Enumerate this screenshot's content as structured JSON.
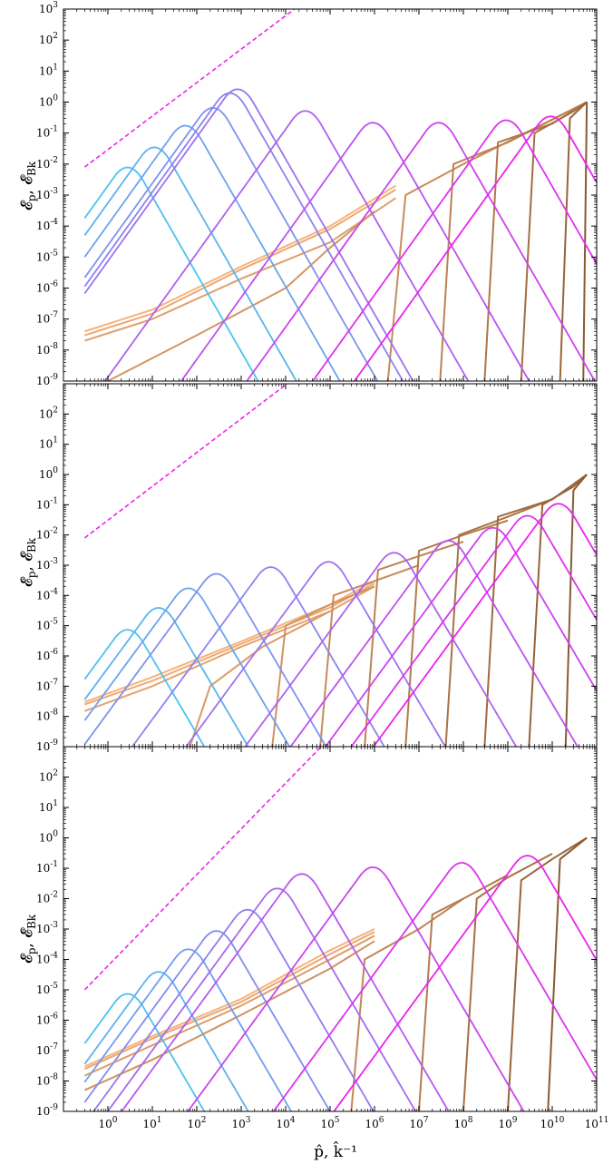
{
  "colors": {
    "spectrum_early": "#4cc3ee",
    "spectrum_late": "#ee22ee",
    "magnetic_early": "#f8b27a",
    "magnetic_late": "#8b5a32",
    "reference_line": "#ee22ee"
  },
  "figure": {
    "xlabel": "p̂,  k̂⁻¹",
    "ylabel_main": "𝓔",
    "ylabel_sub1": "p",
    "ylabel_mid": ",  𝓔",
    "ylabel_sub2": "Bk"
  },
  "chart_data": [
    {
      "type": "line",
      "scale": "log-log",
      "xlim": [
        0.1,
        100000000000
      ],
      "ylim": [
        1e-09,
        1000
      ],
      "x_ticks": [
        "10^0",
        "10^1",
        "10^2",
        "10^3",
        "10^4",
        "10^5",
        "10^6",
        "10^7",
        "10^8",
        "10^9",
        "10^10",
        "10^11"
      ],
      "y_ticks": [
        "10^-9",
        "10^-8",
        "10^-7",
        "10^-6",
        "10^-5",
        "10^-4",
        "10^-3",
        "10^-2",
        "10^-1",
        "10^0",
        "10^1",
        "10^2",
        "10^3"
      ],
      "reference_line": {
        "x": [
          0.3,
          30000
        ],
        "y": [
          0.008,
          2000
        ],
        "style": "dashed"
      },
      "spectra": [
        {
          "peak_x": 3,
          "peak_y": 0.018
        },
        {
          "peak_x": 12,
          "peak_y": 0.08
        },
        {
          "peak_x": 60,
          "peak_y": 0.4
        },
        {
          "peak_x": 250,
          "peak_y": 1.5
        },
        {
          "peak_x": 600,
          "peak_y": 4.5
        },
        {
          "peak_x": 900,
          "peak_y": 6
        },
        {
          "peak_x": 30000,
          "peak_y": 1.2,
          "plateau_y": 0.2
        },
        {
          "peak_x": 1000000,
          "peak_y": 0.5,
          "plateau_y": 0.22
        },
        {
          "peak_x": 30000000,
          "peak_y": 0.5,
          "plateau_y": 0.25
        },
        {
          "peak_x": 1000000000,
          "peak_y": 0.6,
          "plateau_y": 0.3
        },
        {
          "peak_x": 10000000000,
          "peak_y": 0.8,
          "plateau_y": 0.35
        }
      ],
      "magnetic": [
        {
          "x": [
            0.3,
            10,
            1000,
            100000,
            3000000
          ],
          "y": [
            4e-08,
            2e-07,
            5e-06,
            0.0001,
            0.002
          ]
        },
        {
          "x": [
            0.3,
            10,
            1000,
            100000,
            3000000
          ],
          "y": [
            3e-08,
            1.5e-07,
            4e-06,
            8e-05,
            0.0015
          ]
        },
        {
          "x": [
            0.3,
            10,
            1000,
            100000,
            3000000
          ],
          "y": [
            2e-08,
            1e-07,
            2e-06,
            3e-05,
            0.0008
          ]
        },
        {
          "x": [
            1,
            100,
            10000,
            100000,
            1000000
          ],
          "y": [
            1e-09,
            3e-08,
            1e-06,
            2e-05,
            0.0003
          ]
        },
        {
          "x": [
            2000000,
            5000000,
            100000000,
            60000000000
          ],
          "y": [
            1e-09,
            0.001,
            0.01,
            1
          ]
        },
        {
          "x": [
            30000000,
            60000000,
            1000000000,
            60000000000
          ],
          "y": [
            1e-09,
            0.01,
            0.05,
            1
          ]
        },
        {
          "x": [
            300000000,
            600000000,
            10000000000,
            60000000000
          ],
          "y": [
            1e-09,
            0.05,
            0.2,
            1
          ]
        },
        {
          "x": [
            2000000000,
            4000000000,
            30000000000,
            60000000000
          ],
          "y": [
            1e-09,
            0.1,
            0.5,
            1
          ]
        },
        {
          "x": [
            15000000000,
            25000000000,
            60000000000
          ],
          "y": [
            1e-09,
            0.3,
            1
          ]
        },
        {
          "x": [
            50000000000,
            60000000000
          ],
          "y": [
            1e-09,
            1
          ]
        }
      ]
    },
    {
      "type": "line",
      "scale": "log-log",
      "xlim": [
        0.1,
        100000000000
      ],
      "ylim": [
        1e-09,
        1000
      ],
      "x_ticks": [
        "10^0",
        "10^1",
        "10^2",
        "10^3",
        "10^4",
        "10^5",
        "10^6",
        "10^7",
        "10^8",
        "10^9",
        "10^10",
        "10^11"
      ],
      "y_ticks": [
        "10^-9",
        "10^-8",
        "10^-7",
        "10^-6",
        "10^-5",
        "10^-4",
        "10^-3",
        "10^-2",
        "10^-1",
        "10^0",
        "10^1",
        "10^2",
        "10^3"
      ],
      "reference_line": {
        "x": [
          0.3,
          20000
        ],
        "y": [
          0.008,
          2000
        ],
        "style": "dashed"
      },
      "spectra": [
        {
          "peak_x": 3,
          "peak_y": 1.7e-05
        },
        {
          "peak_x": 15,
          "peak_y": 9e-05
        },
        {
          "peak_x": 70,
          "peak_y": 0.0004
        },
        {
          "peak_x": 300,
          "peak_y": 0.0012,
          "plateau_y": 0.0018
        },
        {
          "peak_x": 5000,
          "peak_y": 0.002,
          "plateau_y": 0.002
        },
        {
          "peak_x": 100000,
          "peak_y": 0.003,
          "plateau_y": 0.0025
        },
        {
          "peak_x": 3000000,
          "peak_y": 0.006,
          "plateau_y": 0.003
        },
        {
          "peak_x": 50000000,
          "peak_y": 0.015,
          "plateau_y": 0.004
        },
        {
          "peak_x": 500000000,
          "peak_y": 0.04,
          "plateau_y": 0.006
        },
        {
          "peak_x": 3000000000,
          "peak_y": 0.1,
          "plateau_y": 0.01
        },
        {
          "peak_x": 15000000000,
          "peak_y": 0.25,
          "plateau_y": 0.015
        }
      ],
      "magnetic": [
        {
          "x": [
            0.3,
            10,
            1000,
            100000,
            1000000
          ],
          "y": [
            3e-08,
            2e-07,
            3e-06,
            5e-05,
            0.0003
          ]
        },
        {
          "x": [
            0.3,
            10,
            1000,
            100000,
            1000000
          ],
          "y": [
            2.5e-08,
            1.5e-07,
            2.5e-06,
            4e-05,
            0.00025
          ]
        },
        {
          "x": [
            0.3,
            10,
            1000,
            100000,
            1000000
          ],
          "y": [
            1.5e-08,
            1e-07,
            2e-06,
            3e-05,
            0.0002
          ]
        },
        {
          "x": [
            70,
            200,
            3000,
            100000
          ],
          "y": [
            1e-09,
            1e-07,
            2e-06,
            3e-05
          ]
        },
        {
          "x": [
            5000,
            10000,
            100000,
            1000000
          ],
          "y": [
            1e-09,
            1e-05,
            5e-05,
            0.0002
          ]
        },
        {
          "x": [
            60000,
            120000,
            1000000,
            10000000
          ],
          "y": [
            1e-09,
            0.0001,
            0.0003,
            0.001
          ]
        },
        {
          "x": [
            600000,
            1200000,
            10000000,
            100000000
          ],
          "y": [
            1e-09,
            0.0007,
            0.002,
            0.006
          ]
        },
        {
          "x": [
            5000000,
            10000000,
            100000000,
            1000000000
          ],
          "y": [
            1e-09,
            0.003,
            0.01,
            0.03
          ]
        },
        {
          "x": [
            40000000,
            80000000,
            1000000000,
            10000000000
          ],
          "y": [
            1e-09,
            0.01,
            0.04,
            0.15
          ]
        },
        {
          "x": [
            300000000,
            600000000,
            10000000000,
            60000000000
          ],
          "y": [
            1e-09,
            0.04,
            0.15,
            1
          ]
        },
        {
          "x": [
            3000000000,
            6000000000,
            30000000000,
            60000000000
          ],
          "y": [
            1e-09,
            0.1,
            0.4,
            1
          ]
        },
        {
          "x": [
            20000000000,
            30000000000,
            60000000000
          ],
          "y": [
            1e-09,
            0.3,
            1
          ]
        }
      ]
    },
    {
      "type": "line",
      "scale": "log-log",
      "xlim": [
        0.1,
        100000000000
      ],
      "ylim": [
        1e-09,
        1000
      ],
      "x_ticks": [
        "10^0",
        "10^1",
        "10^2",
        "10^3",
        "10^4",
        "10^5",
        "10^6",
        "10^7",
        "10^8",
        "10^9",
        "10^10",
        "10^11"
      ],
      "y_ticks": [
        "10^-9",
        "10^-8",
        "10^-7",
        "10^-6",
        "10^-5",
        "10^-4",
        "10^-3",
        "10^-2",
        "10^-1",
        "10^0",
        "10^1",
        "10^2",
        "10^3"
      ],
      "reference_line": {
        "x": [
          0.3,
          100000
        ],
        "y": [
          1e-05,
          2000
        ],
        "style": "dashed"
      },
      "spectra": [
        {
          "peak_x": 3,
          "peak_y": 1.7e-05
        },
        {
          "peak_x": 15,
          "peak_y": 9e-05
        },
        {
          "peak_x": 70,
          "peak_y": 0.0005
        },
        {
          "peak_x": 300,
          "peak_y": 0.002
        },
        {
          "peak_x": 1500,
          "peak_y": 0.01
        },
        {
          "peak_x": 7000,
          "peak_y": 0.05
        },
        {
          "peak_x": 25000,
          "peak_y": 0.15,
          "plateau_y": 0.18
        },
        {
          "peak_x": 1000000,
          "peak_y": 0.25,
          "plateau_y": 0.2
        },
        {
          "peak_x": 100000000,
          "peak_y": 0.35,
          "plateau_y": 0.25
        },
        {
          "peak_x": 3000000000,
          "peak_y": 0.6,
          "plateau_y": 0.3
        }
      ],
      "magnetic": [
        {
          "x": [
            0.3,
            10,
            1000,
            100000,
            1000000
          ],
          "y": [
            3e-08,
            3e-07,
            5e-06,
            0.0002,
            0.001
          ]
        },
        {
          "x": [
            0.3,
            10,
            1000,
            100000,
            1000000
          ],
          "y": [
            2.5e-08,
            2.5e-07,
            4e-06,
            0.00015,
            0.0008
          ]
        },
        {
          "x": [
            0.3,
            10,
            1000,
            100000,
            1000000
          ],
          "y": [
            1.5e-08,
            1.5e-07,
            3e-06,
            0.0001,
            0.0006
          ]
        },
        {
          "x": [
            0.3,
            10,
            1000,
            100000,
            1000000
          ],
          "y": [
            5e-09,
            5e-08,
            1.5e-06,
            5e-05,
            0.0004
          ]
        },
        {
          "x": [
            300000,
            600000,
            10000000,
            100000000
          ],
          "y": [
            1e-09,
            0.0001,
            0.001,
            0.01
          ]
        },
        {
          "x": [
            10000000,
            20000000,
            100000000,
            1000000000
          ],
          "y": [
            1e-09,
            0.003,
            0.01,
            0.06
          ]
        },
        {
          "x": [
            100000000,
            200000000,
            1000000000,
            10000000000
          ],
          "y": [
            1e-09,
            0.01,
            0.05,
            0.3
          ]
        },
        {
          "x": [
            1000000000,
            2000000000,
            10000000000,
            60000000000
          ],
          "y": [
            1e-09,
            0.04,
            0.2,
            1
          ]
        },
        {
          "x": [
            8000000000,
            15000000000,
            60000000000
          ],
          "y": [
            1e-09,
            0.2,
            1
          ]
        }
      ]
    }
  ]
}
